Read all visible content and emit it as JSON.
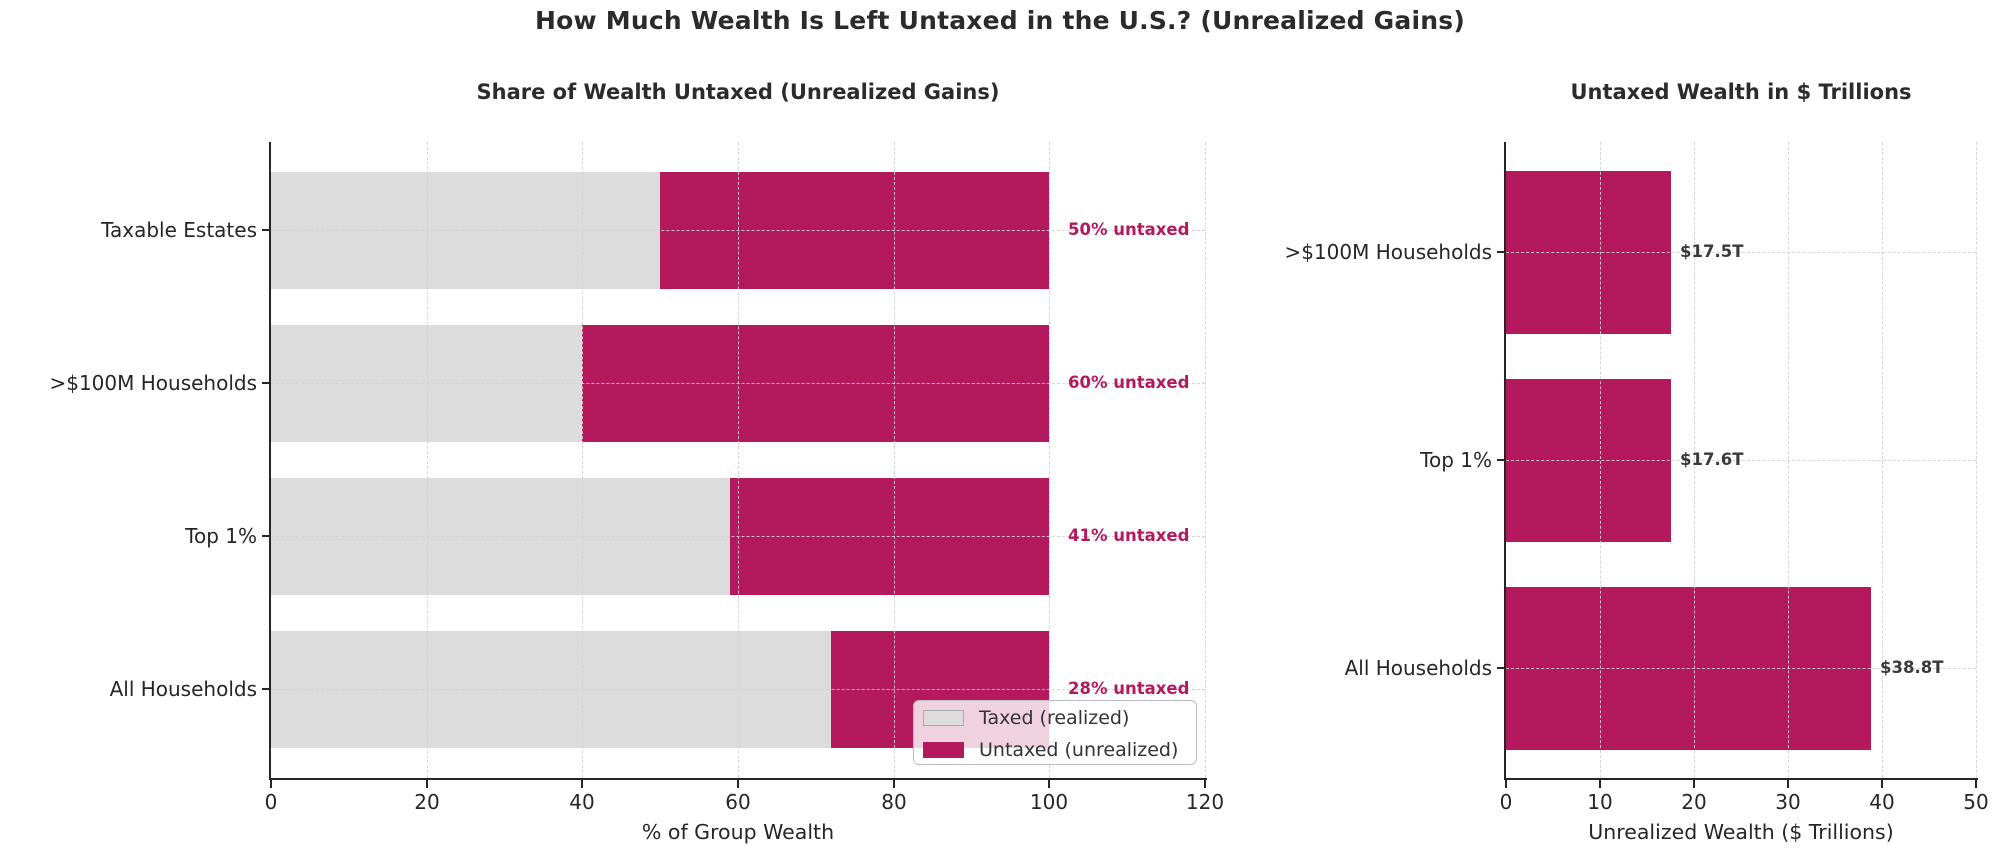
{
  "figure": {
    "title": "How Much Wealth Is Left Untaxed in the U.S.? (Unrealized Gains)"
  },
  "colors": {
    "untaxed": "#B4195E",
    "taxed": "#DCDCDC",
    "title_text": "#2B2B2B",
    "axis_text": "#262626",
    "value_label_text": "#3A3A3A",
    "grid": "#D0D0D0"
  },
  "chart_data": [
    {
      "type": "bar",
      "orientation": "horizontal",
      "stacked": true,
      "title": "Share of Wealth Untaxed (Unrealized Gains)",
      "categories": [
        "Taxable Estates",
        ">$100M Households",
        "Top 1%",
        "All Households"
      ],
      "series": [
        {
          "name": "Taxed (realized)",
          "role": "taxed",
          "values": [
            50,
            40,
            59,
            72
          ]
        },
        {
          "name": "Untaxed (unrealized)",
          "role": "untaxed",
          "values": [
            50,
            60,
            41,
            28
          ]
        }
      ],
      "bar_labels": [
        "50% untaxed",
        "60% untaxed",
        "41% untaxed",
        "28% untaxed"
      ],
      "xlabel": "% of Group Wealth",
      "xlim": [
        0,
        120
      ],
      "xticks": [
        "0",
        "20",
        "40",
        "60",
        "80",
        "100",
        "120"
      ],
      "grid": "dashed",
      "legend": {
        "position": "lower right",
        "entries": [
          "Taxed (realized)",
          "Untaxed (unrealized)"
        ]
      }
    },
    {
      "type": "bar",
      "orientation": "horizontal",
      "stacked": false,
      "title": "Untaxed Wealth in $ Trillions",
      "categories": [
        ">$100M Households",
        "Top 1%",
        "All Households"
      ],
      "series": [
        {
          "name": "Untaxed (unrealized)",
          "role": "untaxed",
          "values": [
            17.5,
            17.6,
            38.8
          ]
        }
      ],
      "bar_labels": [
        "$17.5T",
        "$17.6T",
        "$38.8T"
      ],
      "xlabel": "Unrealized Wealth ($ Trillions)",
      "xlim": [
        0,
        50
      ],
      "xticks": [
        "0",
        "10",
        "20",
        "30",
        "40",
        "50"
      ],
      "grid": "dashed"
    }
  ]
}
